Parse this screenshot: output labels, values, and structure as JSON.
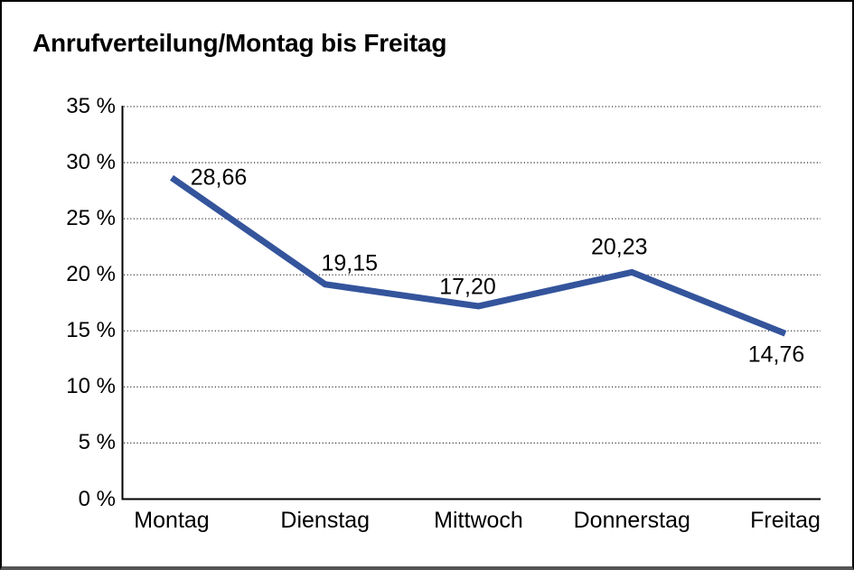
{
  "title": "Anrufverteilung/Montag bis Freitag",
  "chart_data": {
    "type": "line",
    "title": "Anrufverteilung/Montag bis Freitag",
    "categories": [
      "Montag",
      "Dienstag",
      "Mittwoch",
      "Donnerstag",
      "Freitag"
    ],
    "values": [
      28.66,
      19.15,
      17.2,
      20.23,
      14.76
    ],
    "value_labels": [
      "28,66",
      "19,15",
      "17,20",
      "20,23",
      "14,76"
    ],
    "xlabel": "",
    "ylabel": "",
    "ylim": [
      0,
      35
    ],
    "ytick_step": 5,
    "ytick_labels": [
      "0 %",
      "5 %",
      "10 %",
      "15 %",
      "20 %",
      "25 %",
      "30 %",
      "35 %"
    ],
    "grid": "horizontal-dotted",
    "legend": "none",
    "line_color": "#34549C"
  },
  "colors": {
    "line": "#34549C",
    "axis": "#000000",
    "gridline": "#3c3c3c",
    "text": "#000000",
    "background": "#ffffff",
    "frame_border": "#000000",
    "frame_bottom_border": "#555555"
  }
}
